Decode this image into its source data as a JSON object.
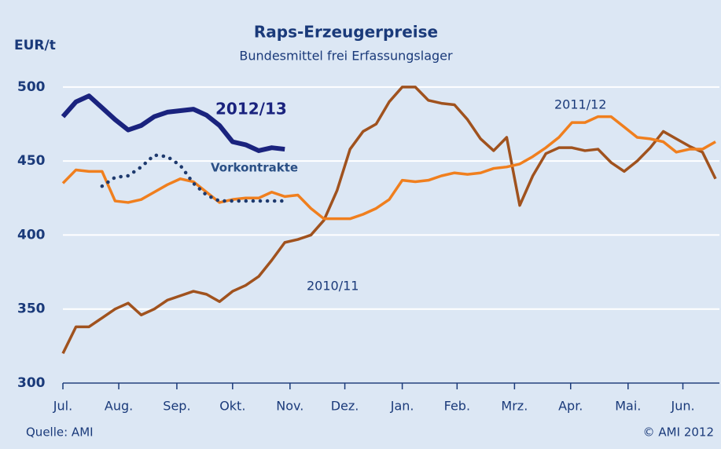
{
  "chart_data": {
    "type": "line",
    "title": "Raps-Erzeugerpreise",
    "subtitle": "Bundesmittel frei Erfassungslager",
    "y_label": "EUR/t",
    "source": "Quelle: AMI",
    "copyright": "© AMI 2012",
    "x": [
      0,
      1,
      2,
      3,
      4,
      5,
      6,
      7,
      8,
      9,
      10,
      11,
      12,
      13,
      14,
      15,
      16,
      17,
      18,
      19,
      20,
      21,
      22,
      23,
      24,
      25,
      26,
      27,
      28,
      29,
      30,
      31,
      32,
      33,
      34,
      35,
      36,
      37,
      38,
      39,
      40,
      41,
      42,
      43,
      44,
      45,
      46,
      47,
      48,
      49,
      50
    ],
    "xlim": [
      0,
      50.3
    ],
    "xticks": [
      {
        "value": 0,
        "label": "Jul."
      },
      {
        "value": 4.28,
        "label": "Aug."
      },
      {
        "value": 8.73,
        "label": "Sep."
      },
      {
        "value": 13.0,
        "label": "Okt."
      },
      {
        "value": 17.4,
        "label": "Nov."
      },
      {
        "value": 21.6,
        "label": "Dez."
      },
      {
        "value": 26.0,
        "label": "Jan."
      },
      {
        "value": 30.2,
        "label": "Feb."
      },
      {
        "value": 34.6,
        "label": "Mrz."
      },
      {
        "value": 38.9,
        "label": "Apr."
      },
      {
        "value": 43.3,
        "label": "Mai."
      },
      {
        "value": 47.5,
        "label": "Jun."
      }
    ],
    "ylim": [
      300,
      510
    ],
    "yticks": [
      300,
      350,
      400,
      450,
      500
    ],
    "grid": true,
    "series": [
      {
        "name": "2010/11",
        "color": "#a0521e",
        "width": 3.5,
        "dash": false,
        "values": [
          320,
          338,
          338,
          344,
          350,
          354,
          346,
          350,
          356,
          359,
          362,
          360,
          355,
          362,
          366,
          372,
          383,
          395,
          397,
          400,
          410,
          430,
          458,
          470,
          475,
          490,
          500,
          500,
          491,
          489,
          488,
          478,
          465,
          457,
          466,
          420,
          440,
          455,
          459,
          459,
          457,
          458,
          449,
          443,
          450,
          459,
          470,
          465,
          460,
          456,
          438
        ]
      },
      {
        "name": "2011/12",
        "color": "#f07f1e",
        "width": 3.5,
        "dash": false,
        "values": [
          435,
          444,
          443,
          443,
          423,
          422,
          424,
          429,
          434,
          438,
          436,
          429,
          422,
          424,
          425,
          425,
          429,
          426,
          427,
          418,
          411,
          411,
          411,
          414,
          418,
          424,
          437,
          436,
          437,
          440,
          442,
          441,
          442,
          445,
          446,
          448,
          453,
          459,
          466,
          476,
          476,
          480,
          480,
          473,
          466,
          465,
          463,
          456,
          458,
          458,
          463
        ]
      },
      {
        "name": "2012/13",
        "color": "#1a237e",
        "width": 6,
        "dash": false,
        "values": [
          480,
          490,
          494,
          486,
          478,
          471,
          474,
          480,
          483,
          484,
          485,
          481,
          474,
          463,
          461,
          457,
          459,
          458,
          null,
          null,
          null,
          null,
          null,
          null,
          null,
          null,
          null,
          null,
          null,
          null,
          null,
          null,
          null,
          null,
          null,
          null,
          null,
          null,
          null,
          null,
          null,
          null,
          null,
          null,
          null,
          null,
          null,
          null,
          null,
          null,
          null
        ]
      },
      {
        "name": "Vorkontrakte",
        "color": "#1e3a6e",
        "width": 4.5,
        "dash": true,
        "values": [
          null,
          null,
          null,
          433,
          439,
          440,
          446,
          454,
          453,
          447,
          435,
          427,
          423,
          423,
          423,
          423,
          423,
          423,
          null,
          null,
          null,
          null,
          null,
          null,
          null,
          null,
          null,
          null,
          null,
          null,
          null,
          null,
          null,
          null,
          null,
          null,
          null,
          null,
          null,
          null,
          null,
          null,
          null,
          null,
          null,
          null,
          null,
          null,
          null,
          null,
          null
        ]
      }
    ]
  }
}
